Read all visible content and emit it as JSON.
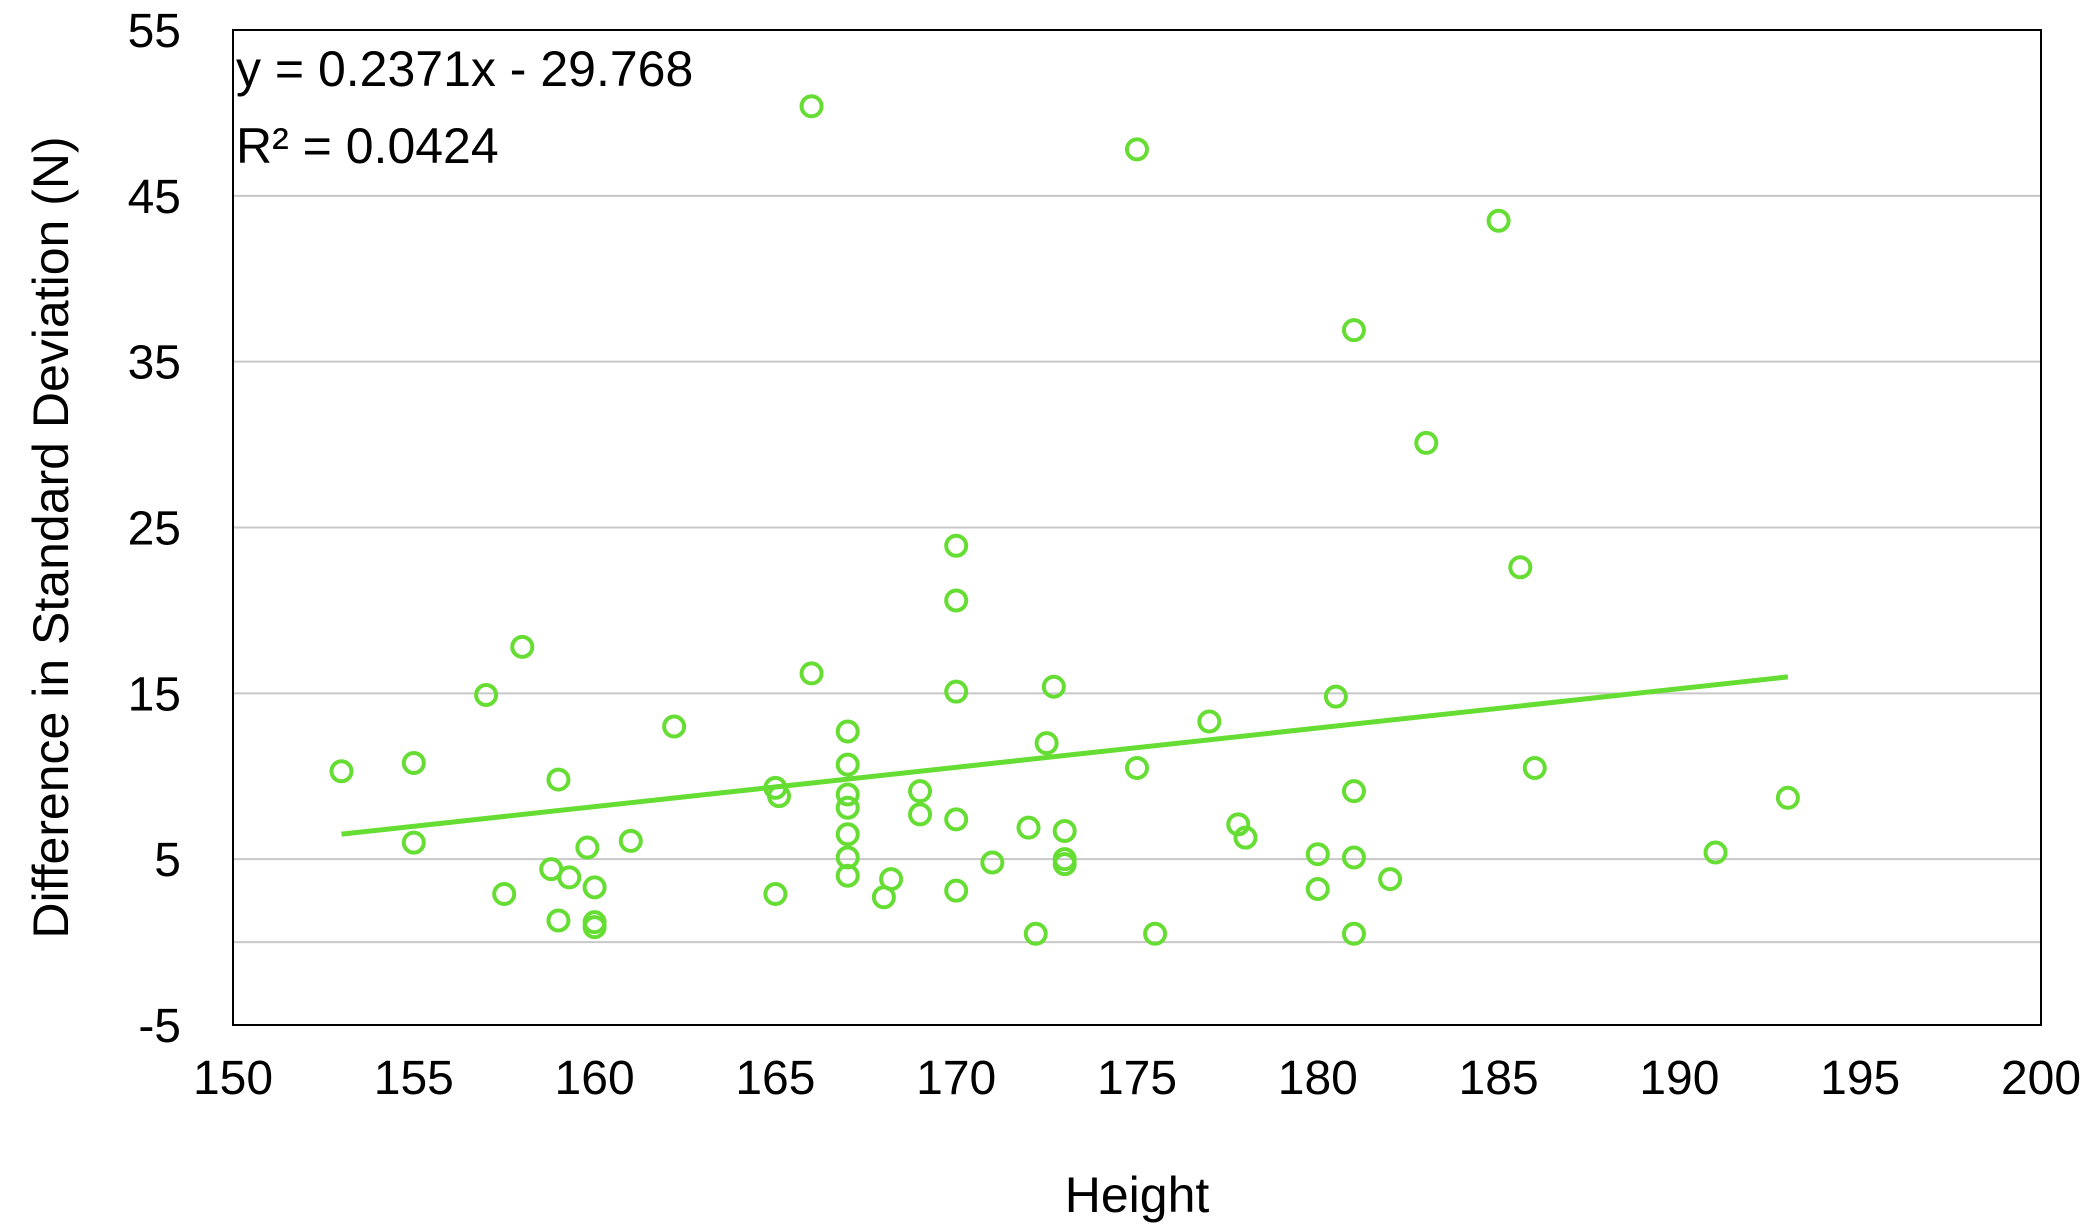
{
  "chart_data": {
    "type": "scatter",
    "xlabel": "Height",
    "ylabel": "Difference in Standard Deviation (N)",
    "xlim": [
      150,
      200
    ],
    "ylim": [
      -5,
      55
    ],
    "xticks": [
      150,
      155,
      160,
      165,
      170,
      175,
      180,
      185,
      190,
      195,
      200
    ],
    "yticks": [
      -5,
      5,
      15,
      25,
      35,
      45,
      55
    ],
    "gridlines": [
      0,
      5,
      15,
      25,
      35,
      45
    ],
    "grid": true,
    "legend": "none",
    "color": "#66dd33",
    "trendline": {
      "slope": 0.2371,
      "intercept": -29.768,
      "x_range": [
        153,
        193
      ],
      "equation": "y = 0.2371x - 29.768",
      "r_squared": "R² = 0.0424"
    },
    "series": [
      {
        "points": [
          [
            153,
            10.3
          ],
          [
            155,
            10.8
          ],
          [
            155,
            6.0
          ],
          [
            157,
            14.9
          ],
          [
            157.5,
            2.9
          ],
          [
            158,
            17.8
          ],
          [
            158.8,
            4.4
          ],
          [
            159,
            9.8
          ],
          [
            159,
            1.3
          ],
          [
            159.3,
            3.9
          ],
          [
            159.8,
            5.7
          ],
          [
            160,
            3.3
          ],
          [
            160,
            1.2
          ],
          [
            160,
            0.9
          ],
          [
            161,
            6.1
          ],
          [
            162.2,
            13.0
          ],
          [
            165,
            9.3
          ],
          [
            165.1,
            8.8
          ],
          [
            165,
            2.9
          ],
          [
            166,
            16.2
          ],
          [
            166,
            50.4
          ],
          [
            167,
            12.7
          ],
          [
            167,
            10.7
          ],
          [
            167,
            8.9
          ],
          [
            167,
            8.1
          ],
          [
            167,
            6.5
          ],
          [
            167,
            5.1
          ],
          [
            167,
            4.0
          ],
          [
            168,
            2.7
          ],
          [
            168.2,
            3.8
          ],
          [
            169,
            9.1
          ],
          [
            169,
            7.7
          ],
          [
            170,
            23.9
          ],
          [
            170,
            20.6
          ],
          [
            170,
            15.1
          ],
          [
            170,
            7.4
          ],
          [
            170,
            3.1
          ],
          [
            171,
            4.8
          ],
          [
            172,
            6.9
          ],
          [
            172.2,
            0.5
          ],
          [
            172.5,
            12.0
          ],
          [
            172.7,
            15.4
          ],
          [
            173,
            6.7
          ],
          [
            173,
            5.0
          ],
          [
            173,
            4.7
          ],
          [
            175,
            47.8
          ],
          [
            175,
            10.5
          ],
          [
            175.5,
            0.5
          ],
          [
            177,
            13.3
          ],
          [
            177.8,
            7.1
          ],
          [
            178,
            6.3
          ],
          [
            180,
            5.3
          ],
          [
            180,
            3.2
          ],
          [
            180.5,
            14.8
          ],
          [
            181,
            36.9
          ],
          [
            181,
            9.1
          ],
          [
            181,
            5.1
          ],
          [
            181,
            0.5
          ],
          [
            182,
            3.8
          ],
          [
            183,
            30.1
          ],
          [
            185,
            43.5
          ],
          [
            185.6,
            22.6
          ],
          [
            186,
            10.5
          ],
          [
            191,
            5.4
          ],
          [
            193,
            8.7
          ]
        ]
      }
    ]
  }
}
